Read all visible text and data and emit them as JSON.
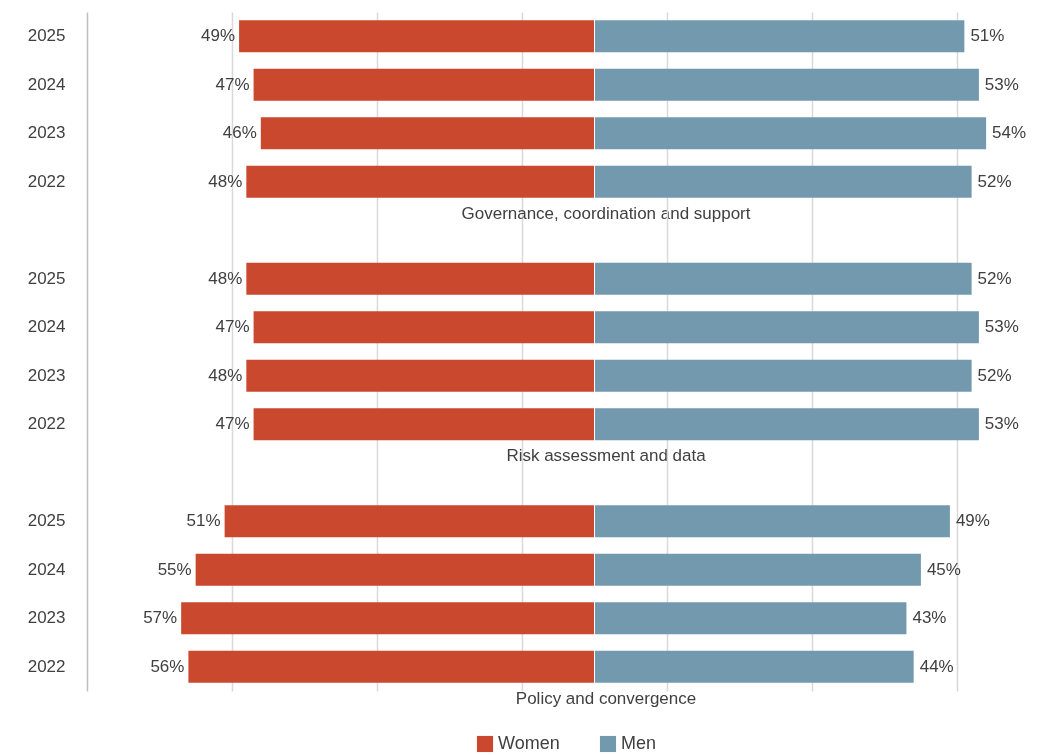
{
  "chart_data": [
    {
      "type": "bar",
      "orientation": "horizontal",
      "categories": [
        "2025",
        "2024",
        "2023",
        "2022",
        null,
        "2025",
        "2024",
        "2023",
        "2022",
        null,
        "2025",
        "2024",
        "2023",
        "2022"
      ],
      "series": [
        {
          "name": "Women",
          "color": "#c9482e",
          "values": [
            49,
            47,
            46,
            48,
            null,
            48,
            47,
            48,
            47,
            null,
            51,
            55,
            57,
            56
          ],
          "value_labels": [
            "49%",
            "47%",
            "46%",
            "48%",
            null,
            "48%",
            "47%",
            "48%",
            "47%",
            null,
            "51%",
            "55%",
            "57%",
            "56%"
          ]
        }
      ],
      "annotations": [
        "Governance, coordination and support",
        "Risk assessment and data",
        "Policy and convergence"
      ],
      "xlim": [
        70,
        0
      ],
      "xticks": [
        {
          "value": 50,
          "label": null
        },
        {
          "value": 30,
          "label": null
        },
        {
          "value": 10,
          "label": null
        }
      ],
      "grid": "x",
      "tick_labels": "y",
      "legend": "bottom right"
    },
    {
      "type": "bar",
      "orientation": "horizontal",
      "categories": [
        "2025",
        "2024",
        "2023",
        "2022",
        null,
        "2025",
        "2024",
        "2023",
        "2022",
        null,
        "2025",
        "2024",
        "2023",
        "2022"
      ],
      "series": [
        {
          "name": "Men",
          "color": "#7399af",
          "values": [
            51,
            53,
            54,
            52,
            null,
            52,
            53,
            52,
            53,
            null,
            49,
            45,
            43,
            44
          ],
          "value_labels": [
            "51%",
            "53%",
            "54%",
            "52%",
            null,
            "52%",
            "53%",
            "52%",
            "53%",
            null,
            "49%",
            "45%",
            "43%",
            "44%"
          ]
        }
      ],
      "xlim": [
        0,
        54
      ],
      "xticks": [
        {
          "value": 10,
          "label": null
        },
        {
          "value": 30,
          "label": null
        },
        {
          "value": 50,
          "label": null
        }
      ],
      "grid": "x",
      "tick_labels": false,
      "legend": "bottom left"
    }
  ]
}
